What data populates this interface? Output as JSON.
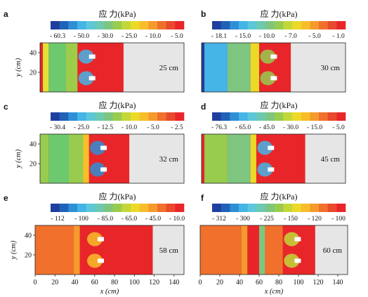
{
  "figure": {
    "cbar_title": "应 力(kPa)",
    "x_axis_label": "x (cm)",
    "y_axis_label": "y (cm)",
    "x_ticks": [
      "0",
      "20",
      "40",
      "60",
      "80",
      "100",
      "120",
      "140"
    ],
    "y_ticks": [
      "20",
      "40"
    ]
  },
  "colorbar_colors": [
    "#1f3fa0",
    "#1f62b8",
    "#2f8fd6",
    "#45b4e6",
    "#5cc7d8",
    "#6dc9b1",
    "#7ec67f",
    "#98cc4f",
    "#c2d83a",
    "#ecd928",
    "#f8be2a",
    "#f59a2c",
    "#f0702c",
    "#e94a2e",
    "#e8262a"
  ],
  "chart_data": [
    {
      "type": "heatmap",
      "panel": "a",
      "label": "25 cm",
      "title": "应 力(kPa)",
      "cbar_ticks": [
        "-60.3",
        "-50.0",
        "-30.0",
        "-25.0",
        "-10.0",
        "-5.0"
      ],
      "xlim": [
        0,
        150
      ],
      "ylim": [
        0,
        50
      ]
    },
    {
      "type": "heatmap",
      "panel": "b",
      "label": "30 cm",
      "title": "应 力(kPa)",
      "cbar_ticks": [
        "-18.1",
        "-15.0",
        "-10.0",
        "-7.0",
        "-5.0",
        "-1.0"
      ],
      "xlim": [
        0,
        150
      ],
      "ylim": [
        0,
        50
      ]
    },
    {
      "type": "heatmap",
      "panel": "c",
      "label": "32 cm",
      "title": "应 力(kPa)",
      "cbar_ticks": [
        "-30.4",
        "-25.0",
        "-12.5",
        "-10.0",
        "-5.0",
        "-2.5"
      ],
      "xlim": [
        0,
        150
      ],
      "ylim": [
        0,
        50
      ]
    },
    {
      "type": "heatmap",
      "panel": "d",
      "label": "45 cm",
      "title": "应 力(kPa)",
      "cbar_ticks": [
        "-76.3",
        "-65.0",
        "-45.0",
        "-30.0",
        "-15.0",
        "-5.0"
      ],
      "xlim": [
        0,
        150
      ],
      "ylim": [
        0,
        50
      ]
    },
    {
      "type": "heatmap",
      "panel": "e",
      "label": "58 cm",
      "title": "应 力(kPa)",
      "cbar_ticks": [
        "-112",
        "-100",
        "-85.0",
        "-65.0",
        "-45.0",
        "-10.0"
      ],
      "xlim": [
        0,
        150
      ],
      "ylim": [
        0,
        50
      ]
    },
    {
      "type": "heatmap",
      "panel": "f",
      "label": "60 cm",
      "title": "应 力(kPa)",
      "cbar_ticks": [
        "-312",
        "-300",
        "-225",
        "-150",
        "-120",
        "-100"
      ],
      "xlim": [
        0,
        150
      ],
      "ylim": [
        0,
        50
      ]
    }
  ]
}
